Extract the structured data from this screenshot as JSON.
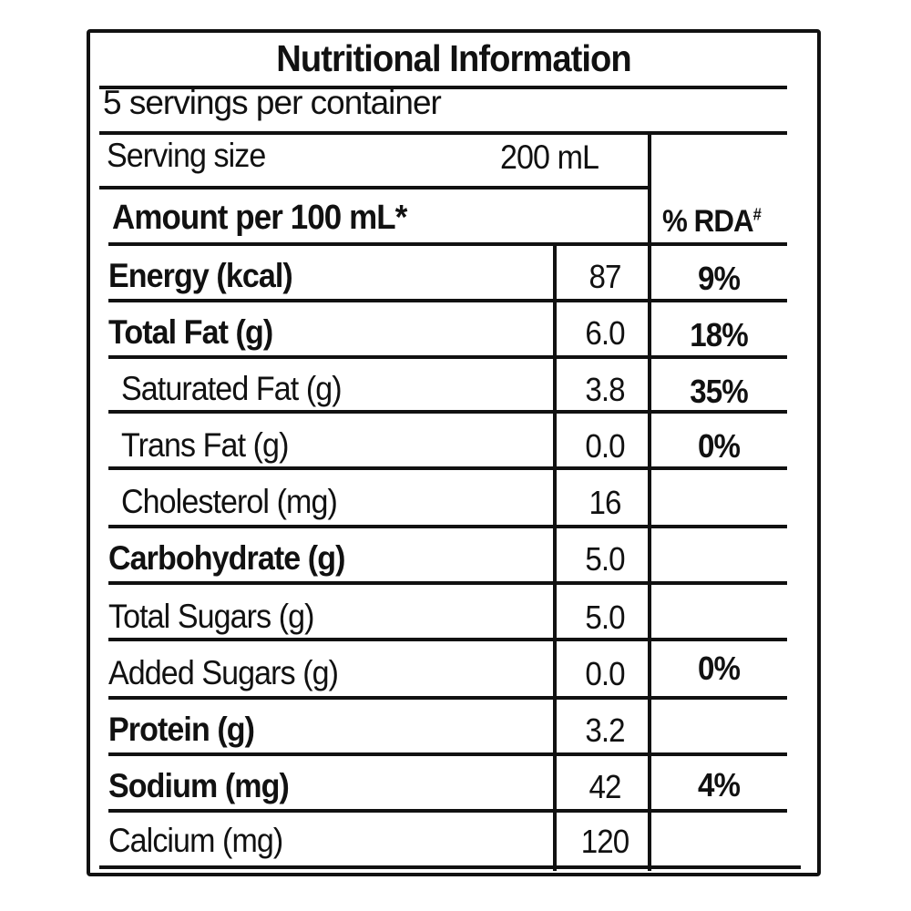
{
  "label": {
    "title": "Nutritional Information",
    "servings_per_container": "5 servings per container",
    "serving_size_label": "Serving size",
    "serving_size_value": "200 mL",
    "amount_header": "Amount per 100 mL*",
    "rda_header": "% RDA",
    "rda_header_mark": "#",
    "rows": [
      {
        "name": "Energy (kcal)",
        "value": "87",
        "rda": "9%"
      },
      {
        "name": "Total Fat (g)",
        "value": "6.0",
        "rda": "18%"
      },
      {
        "name": "Saturated Fat (g)",
        "value": "3.8",
        "rda": "35%"
      },
      {
        "name": "Trans Fat (g)",
        "value": "0.0",
        "rda": "0%"
      },
      {
        "name": "Cholesterol (mg)",
        "value": "16",
        "rda": ""
      },
      {
        "name": "Carbohydrate (g)",
        "value": "5.0",
        "rda": ""
      },
      {
        "name": "Total Sugars (g)",
        "value": "5.0",
        "rda": ""
      },
      {
        "name": "Added Sugars (g)",
        "value": "0.0",
        "rda": "0%"
      },
      {
        "name": "Protein (g)",
        "value": "3.2",
        "rda": ""
      },
      {
        "name": "Sodium (mg)",
        "value": "42",
        "rda": "4%"
      },
      {
        "name": "Calcium (mg)",
        "value": "120",
        "rda": ""
      }
    ]
  }
}
